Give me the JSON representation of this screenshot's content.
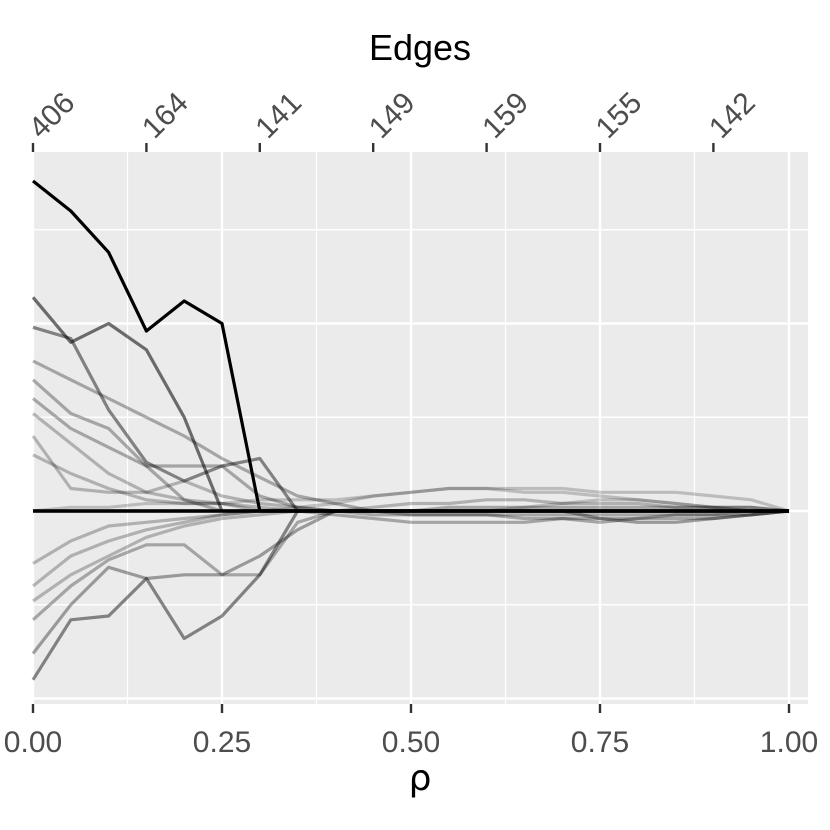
{
  "chart_data": {
    "type": "line",
    "title": "Edges",
    "xlabel": "ρ",
    "ylabel": "",
    "xlim": [
      0,
      1
    ],
    "x_ticks": [
      "0.00",
      "0.25",
      "0.50",
      "0.75",
      "1.00"
    ],
    "x_tick_values": [
      0,
      0.25,
      0.5,
      0.75,
      1.0
    ],
    "top_axis": {
      "tick_positions": [
        0,
        0.15,
        0.3,
        0.45,
        0.6,
        0.75,
        0.9
      ],
      "tick_labels": [
        "406",
        "164",
        "141",
        "149",
        "159",
        "155",
        "142"
      ]
    },
    "y_ticks_labeled": false,
    "grid": true,
    "x": [
      0,
      0.05,
      0.1,
      0.15,
      0.2,
      0.25,
      0.3,
      0.35,
      0.4,
      0.45,
      0.5,
      0.55,
      0.6,
      0.65,
      0.7,
      0.75,
      0.8,
      0.85,
      0.9,
      0.95,
      1.0
    ],
    "colors": {
      "panel": "#ebebeb",
      "grid": "#ffffff",
      "line": "#000000",
      "tick": "#333333",
      "text": "#4d4d4d"
    },
    "series": [
      {
        "values": [
          0.88,
          0.8,
          0.69,
          0.48,
          0.56,
          0.5,
          0,
          0,
          0,
          0,
          0,
          0,
          0,
          0,
          0,
          0,
          0,
          0,
          0,
          0,
          0
        ],
        "opacity": 1.0
      },
      {
        "values": [
          0.57,
          0.45,
          0.5,
          0.43,
          0.25,
          0,
          0,
          0,
          0,
          0,
          0,
          0,
          0,
          0,
          0,
          0,
          0,
          0,
          0,
          0,
          0
        ],
        "opacity": 0.55
      },
      {
        "values": [
          0.49,
          0.46,
          0.27,
          0.13,
          0.08,
          0.12,
          0.14,
          0,
          0,
          0,
          0,
          0,
          0,
          0,
          0,
          0,
          0,
          0,
          0,
          0,
          0
        ],
        "opacity": 0.45
      },
      {
        "values": [
          -0.45,
          -0.29,
          -0.28,
          -0.18,
          -0.34,
          -0.28,
          -0.17,
          0,
          0,
          0,
          0,
          0,
          0,
          0,
          0,
          0,
          0,
          0,
          0,
          0,
          0
        ],
        "opacity": 0.45
      },
      {
        "values": [
          -0.38,
          -0.25,
          -0.15,
          -0.18,
          -0.17,
          -0.17,
          -0.12,
          -0.05,
          0,
          0,
          0,
          0,
          0,
          0,
          0,
          0,
          0,
          0,
          0,
          0,
          0
        ],
        "opacity": 0.35
      },
      {
        "values": [
          -0.29,
          -0.2,
          -0.13,
          -0.09,
          -0.09,
          -0.17,
          -0.17,
          -0.03,
          0,
          0,
          0,
          0,
          0,
          0,
          0,
          0,
          0,
          0,
          0,
          0,
          0
        ],
        "opacity": 0.3
      },
      {
        "values": [
          0.4,
          0.35,
          0.3,
          0.25,
          0.2,
          0.14,
          0.09,
          0.04,
          0.02,
          0,
          0,
          0,
          0,
          0,
          0,
          0,
          0,
          0,
          0,
          0,
          0
        ],
        "opacity": 0.3
      },
      {
        "values": [
          0.35,
          0.26,
          0.22,
          0.12,
          0.12,
          0.12,
          0.04,
          0.01,
          0,
          0,
          0,
          0,
          0,
          0,
          0,
          0,
          0,
          0,
          0,
          0,
          0
        ],
        "opacity": 0.3
      },
      {
        "values": [
          0.3,
          0.22,
          0.17,
          0.12,
          0.03,
          0,
          0,
          0,
          0,
          0,
          0,
          0,
          0,
          0,
          0,
          0,
          0,
          0,
          0,
          0,
          0
        ],
        "opacity": 0.3
      },
      {
        "values": [
          0.26,
          0.18,
          0.1,
          0.05,
          0.08,
          0.04,
          0.02,
          0.01,
          0,
          0,
          0,
          0,
          0,
          0,
          0,
          0,
          0,
          0,
          0,
          0,
          0
        ],
        "opacity": 0.25
      },
      {
        "values": [
          0.2,
          0.06,
          0.05,
          0.05,
          0.03,
          0.02,
          0,
          0,
          0,
          0,
          0,
          0,
          0,
          0,
          0,
          0,
          0,
          0,
          0,
          0,
          0
        ],
        "opacity": 0.25
      },
      {
        "values": [
          -0.2,
          -0.12,
          -0.08,
          -0.05,
          -0.03,
          -0.01,
          0,
          0,
          0,
          0,
          0,
          0,
          0,
          0,
          0,
          0,
          0,
          0,
          0,
          0,
          0
        ],
        "opacity": 0.25
      },
      {
        "values": [
          -0.14,
          -0.08,
          -0.04,
          -0.03,
          -0.02,
          -0.01,
          0,
          0,
          0,
          0,
          0,
          0,
          0,
          0,
          0,
          0,
          0,
          0,
          0,
          0,
          0
        ],
        "opacity": 0.25
      },
      {
        "values": [
          0.15,
          0.1,
          0.06,
          0.03,
          0.02,
          0.02,
          0.01,
          0,
          0,
          0,
          0,
          0,
          0,
          0,
          0,
          0,
          0,
          0,
          0,
          0,
          0
        ],
        "opacity": 0.25
      },
      {
        "values": [
          -0.24,
          -0.17,
          -0.12,
          -0.07,
          -0.04,
          -0.02,
          -0.01,
          0,
          0,
          0,
          0,
          0,
          0,
          0,
          0,
          0,
          0,
          0,
          0,
          0,
          0
        ],
        "opacity": 0.25
      },
      {
        "values": [
          0,
          0.01,
          0.01,
          0.02,
          0.02,
          0.02,
          0.03,
          0.03,
          0.03,
          0.04,
          0.05,
          0.06,
          0.06,
          0.05,
          0.05,
          0.04,
          0.03,
          0.02,
          0.01,
          0,
          0
        ],
        "opacity": 0.2
      },
      {
        "values": [
          0,
          0,
          0,
          0,
          0,
          0,
          0,
          0.01,
          0.02,
          0.04,
          0.05,
          0.06,
          0.06,
          0.06,
          0.06,
          0.05,
          0.05,
          0.05,
          0.04,
          0.03,
          0
        ],
        "opacity": 0.2
      },
      {
        "values": [
          0,
          0,
          0,
          0,
          0,
          0,
          0,
          0,
          -0.01,
          -0.02,
          -0.03,
          -0.03,
          -0.03,
          -0.03,
          -0.02,
          -0.02,
          -0.02,
          -0.02,
          -0.02,
          -0.01,
          0
        ],
        "opacity": 0.3
      },
      {
        "values": [
          0,
          0,
          0,
          0,
          0,
          0,
          0,
          0,
          0,
          0.01,
          0.02,
          0.02,
          0.03,
          0.03,
          0.02,
          0.02,
          0.02,
          0.01,
          0.01,
          0.01,
          0
        ],
        "opacity": 0.25
      },
      {
        "values": [
          0,
          0,
          0,
          0,
          0,
          0,
          0,
          0,
          0,
          0,
          -0.01,
          -0.01,
          -0.01,
          -0.02,
          -0.02,
          -0.03,
          -0.02,
          -0.01,
          -0.01,
          -0.01,
          0
        ],
        "opacity": 0.3
      },
      {
        "values": [
          0,
          0,
          0,
          0,
          0,
          0,
          0,
          0,
          0,
          0,
          0,
          0,
          0,
          0,
          0,
          -0.02,
          -0.03,
          -0.03,
          -0.02,
          -0.01,
          0
        ],
        "opacity": 0.35
      },
      {
        "values": [
          0,
          0,
          0,
          0,
          0,
          0,
          0,
          0,
          0,
          0,
          0,
          0,
          0,
          0.01,
          0.02,
          0.03,
          0.03,
          0.02,
          0.01,
          0,
          0
        ],
        "opacity": 0.2
      },
      {
        "values": [
          0,
          0,
          0,
          0,
          0,
          0,
          0,
          0,
          0,
          0,
          0,
          0.01,
          0.01,
          0.01,
          0.01,
          0.01,
          0.01,
          0.01,
          0.01,
          0.01,
          0
        ],
        "opacity": 0.3
      },
      {
        "values": [
          0,
          0,
          0,
          0,
          0,
          0,
          0,
          0,
          0,
          -0.01,
          -0.01,
          -0.01,
          -0.01,
          -0.01,
          -0.01,
          -0.01,
          -0.01,
          -0.01,
          -0.01,
          0,
          0
        ],
        "opacity": 0.3
      },
      {
        "values": [
          0,
          0,
          0,
          0,
          0,
          0,
          0,
          0,
          0,
          0,
          0,
          0,
          0,
          0,
          0,
          0,
          0,
          0,
          0,
          0,
          0
        ],
        "opacity": 1.0
      }
    ]
  }
}
